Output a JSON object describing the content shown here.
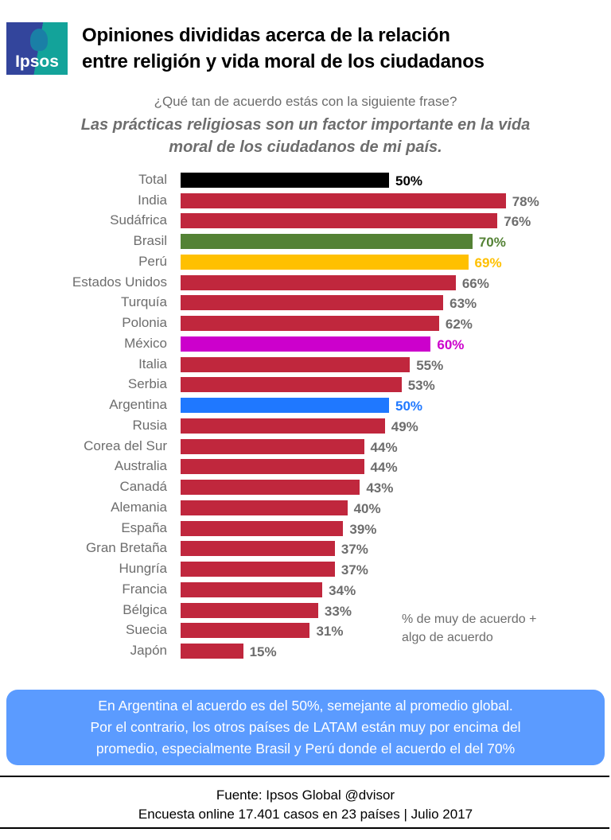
{
  "logo": "Ipsos",
  "title": [
    "Opiniones divididas acerca de la relación",
    "entre religión y vida moral de los ciudadanos"
  ],
  "question": "¿Qué tan de acuerdo estás con la siguiente frase?",
  "statement": [
    "Las prácticas religiosas son un factor importante en la vida",
    "moral de los ciudadanos de mi país."
  ],
  "chart_data": {
    "type": "bar",
    "orientation": "horizontal",
    "categories": [
      "Total",
      "India",
      "Sudáfrica",
      "Brasil",
      "Perú",
      "Estados Unidos",
      "Turquía",
      "Polonia",
      "México",
      "Italia",
      "Serbia",
      "Argentina",
      "Rusia",
      "Corea del Sur",
      "Australia",
      "Canadá",
      "Alemania",
      "España",
      "Gran Bretaña",
      "Hungría",
      "Francia",
      "Bélgica",
      "Suecia",
      "Japón"
    ],
    "values": [
      50,
      78,
      76,
      70,
      69,
      66,
      63,
      62,
      60,
      55,
      53,
      50,
      49,
      44,
      44,
      43,
      40,
      39,
      37,
      37,
      34,
      33,
      31,
      15
    ],
    "value_labels": [
      "50%",
      "78%",
      "76%",
      "70%",
      "69%",
      "66%",
      "63%",
      "62%",
      "60%",
      "55%",
      "53%",
      "50%",
      "49%",
      "44%",
      "44%",
      "43%",
      "40%",
      "39%",
      "37%",
      "37%",
      "34%",
      "33%",
      "31%",
      "15%"
    ],
    "colors": {
      "default": "#c0273d",
      "Total": "#000000",
      "Brasil": "#548235",
      "Perú": "#ffc000",
      "México": "#cc00cc",
      "Argentina": "#1f78ff"
    },
    "label_colors": {
      "default": "#6d6d6d",
      "Total": "#000000",
      "Brasil": "#548235",
      "Perú": "#ffc000",
      "México": "#cc00cc",
      "Argentina": "#1f78ff"
    },
    "xlim": [
      0,
      100
    ],
    "note": [
      "% de muy de acuerdo +",
      "algo de acuerdo"
    ]
  },
  "summary": [
    "En Argentina  el acuerdo es del 50%, semejante al promedio global.",
    "Por el contrario, los otros países de LATAM están muy por encima del",
    "promedio, especialmente Brasil y Perú donde el acuerdo el del 70%"
  ],
  "source": [
    "Fuente: Ipsos Global @dvisor",
    "Encuesta online 17.401 casos en 23 países |  Julio 2017"
  ]
}
